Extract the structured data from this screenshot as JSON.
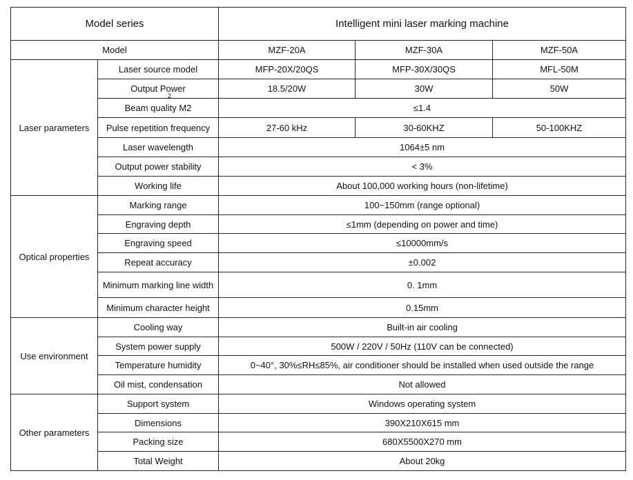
{
  "header": {
    "series_label": "Model series",
    "series_value": "Intelligent mini laser marking machine"
  },
  "model_row": {
    "label": "Model",
    "values": [
      "MZF-20A",
      "MZF-30A",
      "MZF-50A"
    ]
  },
  "groups": [
    {
      "name": "Laser parameters",
      "rows": [
        {
          "label": "Laser source model",
          "values": [
            "MFP-20X/20QS",
            "MFP-30X/30QS",
            "MFL-50M"
          ]
        },
        {
          "label": "Output Power",
          "values": [
            "18.5/20W",
            "30W",
            "50W"
          ]
        },
        {
          "label": "Beam quality M2",
          "superscript": "2",
          "value": "≤1.4"
        },
        {
          "label": "Pulse repetition frequency",
          "values": [
            "27-60 kHz",
            "30-60KHZ",
            "50-100KHZ"
          ]
        },
        {
          "label": "Laser wavelength",
          "value": "1064±5 nm"
        },
        {
          "label": "Output power stability",
          "value": "< 3%"
        },
        {
          "label": "Working life",
          "value": "About 100,000 working hours (non-lifetime)"
        }
      ]
    },
    {
      "name": "Optical properties",
      "rows": [
        {
          "label": "Marking range",
          "value": "100~150mm (range optional)"
        },
        {
          "label": "Engraving depth",
          "value": "≤1mm (depending on power and time)"
        },
        {
          "label": "Engraving speed",
          "value": "≤10000mm/s"
        },
        {
          "label": "Repeat accuracy",
          "value": "±0.002"
        },
        {
          "label": "Minimum marking line width",
          "value": "0. 1mm"
        },
        {
          "label": "Minimum character height",
          "value": "0.15mm"
        }
      ]
    },
    {
      "name": "Use environment",
      "rows": [
        {
          "label": "Cooling way",
          "value": "Built-in air cooling"
        },
        {
          "label": "System power supply",
          "value": "500W / 220V / 50Hz (110V can be connected)"
        },
        {
          "label": "Temperature humidity",
          "value": "0~40°, 30%≤RH≤85%, air conditioner should be installed when used outside the range"
        },
        {
          "label": "Oil mist, condensation",
          "value": "Not allowed"
        }
      ]
    },
    {
      "name": "Other parameters",
      "rows": [
        {
          "label": "Support system",
          "value": "Windows operating system"
        },
        {
          "label": "Dimensions",
          "value": "390X210X615 mm"
        },
        {
          "label": "Packing size",
          "value": "680X5500X270 mm"
        },
        {
          "label": "Total Weight",
          "value": "About 20kg"
        }
      ]
    }
  ]
}
